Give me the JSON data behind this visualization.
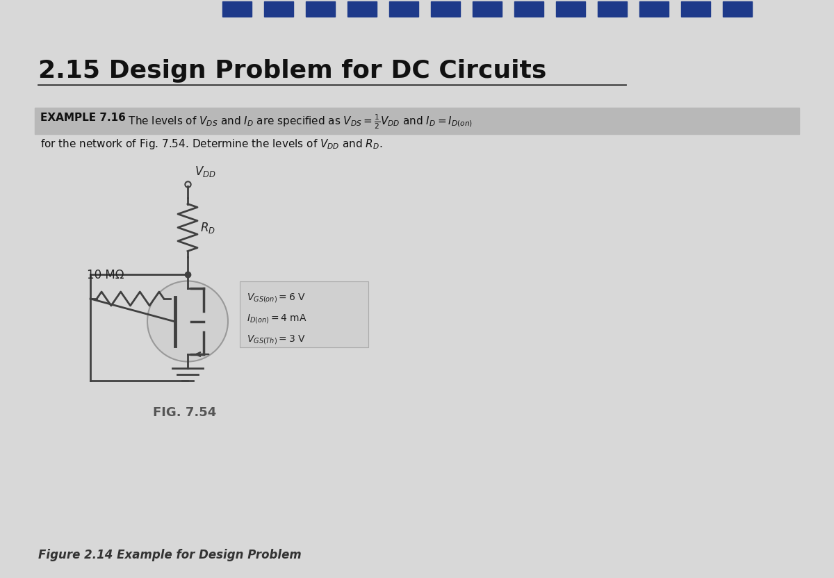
{
  "title": "2.15 Design Problem for DC Circuits",
  "page_bg": "#d8d8d8",
  "top_stripe_color": "#1e3a8a",
  "example_bold": "EXAMPLE 7.16",
  "example_line1": "  The levels of $V_{DS}$ and $I_D$ are specified as $V_{DS} = \\frac{1}{2}V_{DD}$ and $I_D = I_{D(on)}$",
  "example_line2": "for the network of Fig. 7.54. Determine the levels of $V_{DD}$ and $R_D$.",
  "fig_label": "FIG. 7.54",
  "fig_caption": "Figure 2.14 Example for Design Problem",
  "wire_color": "#404040",
  "text_color": "#333333",
  "banner_color": "#b8b8b8",
  "mosfet_circle_color": "#cccccc",
  "param_box_color": "#d0d0d0",
  "tab_color": "#1e3a8a"
}
